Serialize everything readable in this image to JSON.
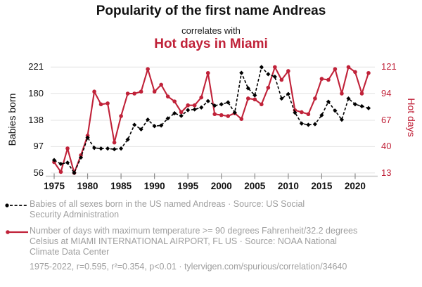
{
  "header": {
    "title": "Popularity of the first name Andreas",
    "subtitle": "correlates with",
    "title_secondary": "Hot days in Miami"
  },
  "chart": {
    "ylabel_left": "Babies born",
    "ylabel_right": "Hot days"
  },
  "chart_data": {
    "type": "line",
    "title": "Popularity of the first name Andreas correlates with Hot days in Miami",
    "x": [
      1975,
      1976,
      1977,
      1978,
      1979,
      1980,
      1981,
      1982,
      1983,
      1984,
      1985,
      1986,
      1987,
      1988,
      1989,
      1990,
      1991,
      1992,
      1993,
      1994,
      1995,
      1996,
      1997,
      1998,
      1999,
      2000,
      2001,
      2002,
      2003,
      2004,
      2005,
      2006,
      2007,
      2008,
      2009,
      2010,
      2011,
      2012,
      2013,
      2014,
      2015,
      2016,
      2017,
      2018,
      2019,
      2020,
      2021,
      2022
    ],
    "series": [
      {
        "name": "Babies of all sexes born in the US named Andreas",
        "axis": "left",
        "color": "#000000",
        "style": "dashed-diamond",
        "values": [
          76,
          70,
          72,
          56,
          80,
          111,
          95,
          94,
          94,
          93,
          94,
          108,
          131,
          124,
          139,
          129,
          130,
          141,
          149,
          145,
          154,
          155,
          158,
          168,
          161,
          163,
          166,
          150,
          212,
          188,
          177,
          221,
          210,
          206,
          172,
          179,
          150,
          133,
          131,
          132,
          146,
          167,
          153,
          139,
          172,
          163,
          160,
          157
        ]
      },
      {
        "name": "Number of days with maximum temperature >= 90 degrees Fahrenheit/32.2 degrees Celsius at MIAMI INTERNATIONAL AIRPORT, FL US",
        "axis": "right",
        "color": "#c02239",
        "style": "solid-dot",
        "values": [
          24,
          14,
          38,
          13,
          31,
          51,
          96,
          83,
          84,
          44,
          71,
          94,
          94,
          96,
          119,
          96,
          103,
          91,
          86,
          75,
          82,
          82,
          90,
          115,
          73,
          72,
          71,
          74,
          68,
          89,
          88,
          83,
          100,
          121,
          108,
          117,
          77,
          75,
          73,
          89,
          109,
          108,
          119,
          94,
          121,
          116,
          94,
          115
        ]
      }
    ],
    "xlabel": "",
    "ylabel_left": "Babies born",
    "ylabel_right": "Hot days",
    "x_ticks": [
      1975,
      1980,
      1985,
      1990,
      1995,
      2000,
      2005,
      2010,
      2015,
      2020
    ],
    "y_ticks_left": [
      56,
      97,
      138,
      180,
      221
    ],
    "y_ticks_right": [
      13,
      40,
      67,
      94,
      121
    ],
    "ylim_left": [
      56,
      221
    ],
    "ylim_right": [
      13,
      121
    ],
    "grid": "horizontal",
    "legend_position": "bottom"
  },
  "legend": {
    "items": [
      {
        "icon": "black-diamond-dashed-line",
        "lines": [
          "Babies of all sexes born in the US named Andreas · Source: US Social",
          "Security Administration"
        ]
      },
      {
        "icon": "red-dot-solid-line",
        "lines": [
          "Number of days with maximum temperature >= 90 degrees Fahrenheit/32.2 degrees",
          "Celsius at MIAMI INTERNATIONAL AIRPORT, FL US · Source: NOAA National",
          "Climate Data Center"
        ]
      }
    ]
  },
  "footer": {
    "stats": "1975-2022, r=0.595, r²=0.354, p<0.01 · tylervigen.com/spurious/correlation/34640"
  },
  "colors": {
    "accent_red": "#c02239",
    "text_gray": "#9e9e9e",
    "grid_line": "#e7e7e7",
    "axis_line": "#c8c8c8",
    "tick_mark": "#8a8a8a",
    "series_black": "#000000"
  }
}
